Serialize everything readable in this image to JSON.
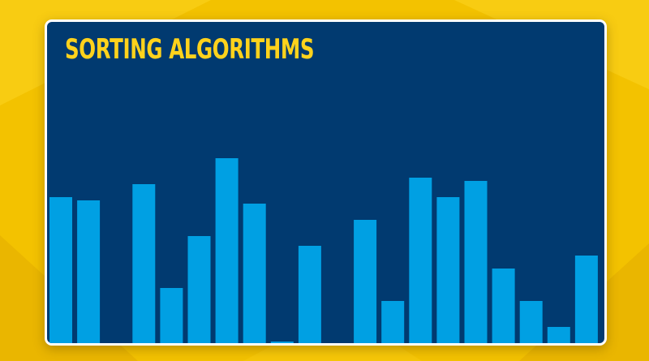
{
  "title": "SORTING ALGORITHMS",
  "colors": {
    "page_background": "#f3c200",
    "page_background_shade": "#e9b400",
    "card_background": "#013a70",
    "card_border": "#ffffff",
    "title": "#ffd21c",
    "bar": "#00a0e3"
  },
  "bar_values": [
    0.45,
    0.44,
    0,
    0.49,
    0.17,
    0.33,
    0.57,
    0.43,
    0.004,
    0.3,
    0,
    0.38,
    0.13,
    0.51,
    0.45,
    0.5,
    0.23,
    0.13,
    0.05,
    0.27
  ]
}
